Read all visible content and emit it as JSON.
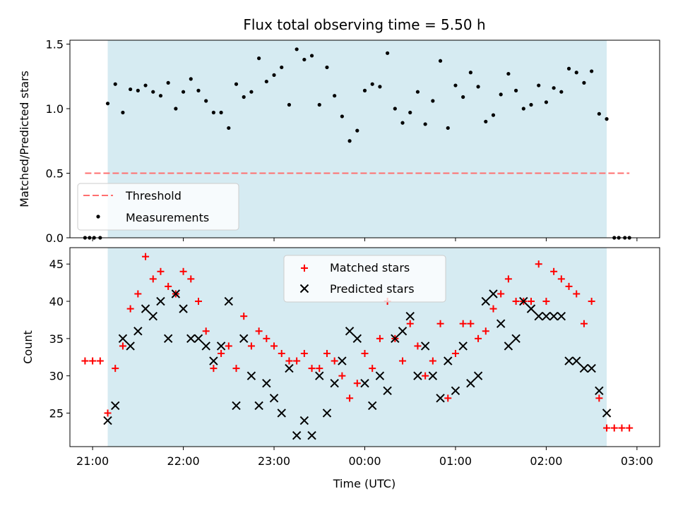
{
  "chart_data": [
    {
      "type": "scatter",
      "title": "Flux total observing time = 5.50 h",
      "xlabel": "",
      "ylabel": "Matched/Predicted stars",
      "xlim": [
        "20:45",
        "03:15"
      ],
      "ylim": [
        0,
        1.53
      ],
      "xticks": [
        "21:00",
        "22:00",
        "23:00",
        "00:00",
        "01:00",
        "02:00",
        "03:00"
      ],
      "xtick_labels_shown": false,
      "yticks": [
        "0.0",
        "0.5",
        "1.0",
        "1.5"
      ],
      "shaded_interval": [
        "21:10",
        "02:40"
      ],
      "shade_color": "#add8e6",
      "threshold": {
        "name": "Threshold",
        "value": 0.5,
        "x_range": [
          "20:55",
          "02:55"
        ],
        "color": "#ff6f6f"
      },
      "legend": {
        "position": "lower-left",
        "entries": [
          "Threshold",
          "Measurements"
        ]
      },
      "series": [
        {
          "name": "Measurements",
          "marker": "dot",
          "color": "#000000",
          "points": [
            [
              "20:55",
              0.0
            ],
            [
              "20:58",
              0.0
            ],
            [
              "21:01",
              0.0
            ],
            [
              "21:05",
              0.0
            ],
            [
              "21:10",
              1.04
            ],
            [
              "21:15",
              1.19
            ],
            [
              "21:20",
              0.97
            ],
            [
              "21:25",
              1.15
            ],
            [
              "21:30",
              1.14
            ],
            [
              "21:35",
              1.18
            ],
            [
              "21:40",
              1.13
            ],
            [
              "21:45",
              1.1
            ],
            [
              "21:50",
              1.2
            ],
            [
              "21:55",
              1.0
            ],
            [
              "22:00",
              1.13
            ],
            [
              "22:05",
              1.23
            ],
            [
              "22:10",
              1.14
            ],
            [
              "22:15",
              1.06
            ],
            [
              "22:20",
              0.97
            ],
            [
              "22:25",
              0.97
            ],
            [
              "22:30",
              0.85
            ],
            [
              "22:35",
              1.19
            ],
            [
              "22:40",
              1.09
            ],
            [
              "22:45",
              1.13
            ],
            [
              "22:50",
              1.39
            ],
            [
              "22:55",
              1.21
            ],
            [
              "23:00",
              1.26
            ],
            [
              "23:05",
              1.32
            ],
            [
              "23:10",
              1.03
            ],
            [
              "23:15",
              1.46
            ],
            [
              "23:20",
              1.38
            ],
            [
              "23:25",
              1.41
            ],
            [
              "23:30",
              1.03
            ],
            [
              "23:35",
              1.32
            ],
            [
              "23:40",
              1.1
            ],
            [
              "23:45",
              0.94
            ],
            [
              "23:50",
              0.75
            ],
            [
              "23:55",
              0.83
            ],
            [
              "00:00",
              1.14
            ],
            [
              "00:05",
              1.19
            ],
            [
              "00:10",
              1.17
            ],
            [
              "00:15",
              1.43
            ],
            [
              "00:20",
              1.0
            ],
            [
              "00:25",
              0.89
            ],
            [
              "00:30",
              0.97
            ],
            [
              "00:35",
              1.13
            ],
            [
              "00:40",
              0.88
            ],
            [
              "00:45",
              1.06
            ],
            [
              "00:50",
              1.37
            ],
            [
              "00:55",
              0.85
            ],
            [
              "01:00",
              1.18
            ],
            [
              "01:05",
              1.09
            ],
            [
              "01:10",
              1.28
            ],
            [
              "01:15",
              1.17
            ],
            [
              "01:20",
              0.9
            ],
            [
              "01:25",
              0.95
            ],
            [
              "01:30",
              1.11
            ],
            [
              "01:35",
              1.27
            ],
            [
              "01:40",
              1.14
            ],
            [
              "01:45",
              1.0
            ],
            [
              "01:50",
              1.03
            ],
            [
              "01:55",
              1.18
            ],
            [
              "02:00",
              1.05
            ],
            [
              "02:05",
              1.16
            ],
            [
              "02:10",
              1.13
            ],
            [
              "02:15",
              1.31
            ],
            [
              "02:20",
              1.28
            ],
            [
              "02:25",
              1.2
            ],
            [
              "02:30",
              1.29
            ],
            [
              "02:35",
              0.96
            ],
            [
              "02:40",
              0.92
            ],
            [
              "02:45",
              0.0
            ],
            [
              "02:48",
              0.0
            ],
            [
              "02:52",
              0.0
            ],
            [
              "02:55",
              0.0
            ]
          ]
        }
      ]
    },
    {
      "type": "scatter",
      "title": "",
      "xlabel": "Time (UTC)",
      "ylabel": "Count",
      "xlim": [
        "20:45",
        "03:15"
      ],
      "ylim": [
        20.5,
        47.2
      ],
      "xticks": [
        "21:00",
        "22:00",
        "23:00",
        "00:00",
        "01:00",
        "02:00",
        "03:00"
      ],
      "yticks": [
        "25",
        "30",
        "35",
        "40",
        "45"
      ],
      "shaded_interval": [
        "21:10",
        "02:40"
      ],
      "shade_color": "#add8e6",
      "legend": {
        "position": "upper-center",
        "entries": [
          "Matched stars",
          "Predicted stars"
        ]
      },
      "series": [
        {
          "name": "Matched stars",
          "marker": "plus",
          "color": "#ff0000",
          "points": [
            [
              "20:55",
              32
            ],
            [
              "21:00",
              32
            ],
            [
              "21:05",
              32
            ],
            [
              "21:10",
              25
            ],
            [
              "21:15",
              31
            ],
            [
              "21:20",
              34
            ],
            [
              "21:25",
              39
            ],
            [
              "21:30",
              41
            ],
            [
              "21:35",
              46
            ],
            [
              "21:40",
              43
            ],
            [
              "21:45",
              44
            ],
            [
              "21:50",
              42
            ],
            [
              "21:55",
              41
            ],
            [
              "22:00",
              44
            ],
            [
              "22:05",
              43
            ],
            [
              "22:10",
              40
            ],
            [
              "22:15",
              36
            ],
            [
              "22:20",
              31
            ],
            [
              "22:25",
              33
            ],
            [
              "22:30",
              34
            ],
            [
              "22:35",
              31
            ],
            [
              "22:40",
              38
            ],
            [
              "22:45",
              34
            ],
            [
              "22:50",
              36
            ],
            [
              "22:55",
              35
            ],
            [
              "23:00",
              34
            ],
            [
              "23:05",
              33
            ],
            [
              "23:10",
              32
            ],
            [
              "23:15",
              32
            ],
            [
              "23:20",
              33
            ],
            [
              "23:25",
              31
            ],
            [
              "23:30",
              31
            ],
            [
              "23:35",
              33
            ],
            [
              "23:40",
              32
            ],
            [
              "23:45",
              30
            ],
            [
              "23:50",
              27
            ],
            [
              "23:55",
              29
            ],
            [
              "00:00",
              33
            ],
            [
              "00:05",
              31
            ],
            [
              "00:10",
              35
            ],
            [
              "00:15",
              40
            ],
            [
              "00:20",
              35
            ],
            [
              "00:25",
              32
            ],
            [
              "00:30",
              37
            ],
            [
              "00:35",
              34
            ],
            [
              "00:40",
              30
            ],
            [
              "00:45",
              32
            ],
            [
              "00:50",
              37
            ],
            [
              "00:55",
              27
            ],
            [
              "01:00",
              33
            ],
            [
              "01:05",
              37
            ],
            [
              "01:10",
              37
            ],
            [
              "01:15",
              35
            ],
            [
              "01:20",
              36
            ],
            [
              "01:25",
              39
            ],
            [
              "01:30",
              41
            ],
            [
              "01:35",
              43
            ],
            [
              "01:40",
              40
            ],
            [
              "01:45",
              40
            ],
            [
              "01:50",
              40
            ],
            [
              "01:55",
              45
            ],
            [
              "02:00",
              40
            ],
            [
              "02:05",
              44
            ],
            [
              "02:10",
              43
            ],
            [
              "02:15",
              42
            ],
            [
              "02:20",
              41
            ],
            [
              "02:25",
              37
            ],
            [
              "02:30",
              40
            ],
            [
              "02:35",
              27
            ],
            [
              "02:40",
              23
            ],
            [
              "02:45",
              23
            ],
            [
              "02:50",
              23
            ],
            [
              "02:55",
              23
            ]
          ]
        },
        {
          "name": "Predicted stars",
          "marker": "x",
          "color": "#000000",
          "points": [
            [
              "21:10",
              24
            ],
            [
              "21:15",
              26
            ],
            [
              "21:20",
              35
            ],
            [
              "21:25",
              34
            ],
            [
              "21:30",
              36
            ],
            [
              "21:35",
              39
            ],
            [
              "21:40",
              38
            ],
            [
              "21:45",
              40
            ],
            [
              "21:50",
              35
            ],
            [
              "21:55",
              41
            ],
            [
              "22:00",
              39
            ],
            [
              "22:05",
              35
            ],
            [
              "22:10",
              35
            ],
            [
              "22:15",
              34
            ],
            [
              "22:20",
              32
            ],
            [
              "22:25",
              34
            ],
            [
              "22:30",
              40
            ],
            [
              "22:35",
              26
            ],
            [
              "22:40",
              35
            ],
            [
              "22:45",
              30
            ],
            [
              "22:50",
              26
            ],
            [
              "22:55",
              29
            ],
            [
              "23:00",
              27
            ],
            [
              "23:05",
              25
            ],
            [
              "23:10",
              31
            ],
            [
              "23:15",
              22
            ],
            [
              "23:20",
              24
            ],
            [
              "23:25",
              22
            ],
            [
              "23:30",
              30
            ],
            [
              "23:35",
              25
            ],
            [
              "23:40",
              29
            ],
            [
              "23:45",
              32
            ],
            [
              "23:50",
              36
            ],
            [
              "23:55",
              35
            ],
            [
              "00:00",
              29
            ],
            [
              "00:05",
              26
            ],
            [
              "00:10",
              30
            ],
            [
              "00:15",
              28
            ],
            [
              "00:20",
              35
            ],
            [
              "00:25",
              36
            ],
            [
              "00:30",
              38
            ],
            [
              "00:35",
              30
            ],
            [
              "00:40",
              34
            ],
            [
              "00:45",
              30
            ],
            [
              "00:50",
              27
            ],
            [
              "00:55",
              32
            ],
            [
              "01:00",
              28
            ],
            [
              "01:05",
              34
            ],
            [
              "01:10",
              29
            ],
            [
              "01:15",
              30
            ],
            [
              "01:20",
              40
            ],
            [
              "01:25",
              41
            ],
            [
              "01:30",
              37
            ],
            [
              "01:35",
              34
            ],
            [
              "01:40",
              35
            ],
            [
              "01:45",
              40
            ],
            [
              "01:50",
              39
            ],
            [
              "01:55",
              38
            ],
            [
              "02:00",
              38
            ],
            [
              "02:05",
              38
            ],
            [
              "02:10",
              38
            ],
            [
              "02:15",
              32
            ],
            [
              "02:20",
              32
            ],
            [
              "02:25",
              31
            ],
            [
              "02:30",
              31
            ],
            [
              "02:35",
              28
            ],
            [
              "02:40",
              25
            ]
          ]
        }
      ]
    }
  ]
}
